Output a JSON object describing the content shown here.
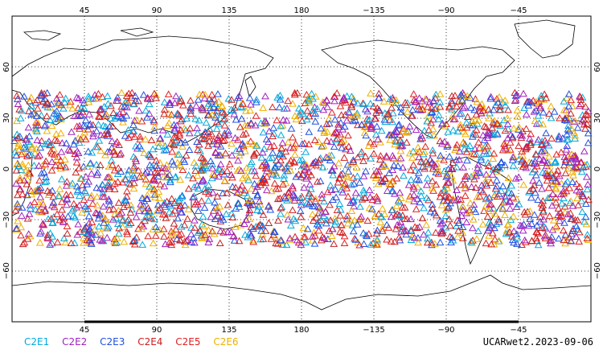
{
  "chart_data": {
    "type": "scatter",
    "title": "",
    "xlabel": "",
    "ylabel": "",
    "projection": "equirectangular, centered at 180",
    "lon_ticks": [
      "45",
      "90",
      "135",
      "180",
      "−135",
      "−90",
      "−45"
    ],
    "lat_ticks_left": [
      "60",
      "30",
      "0",
      "−30",
      "−60"
    ],
    "lat_ticks_right": [
      "60",
      "30",
      "0",
      "−30",
      "−60"
    ],
    "grid": "dotted at 45° longitude / 30° latitude",
    "lat_range": [
      -90,
      90
    ],
    "marker": "open triangle",
    "observation_latitude_band": [
      -45,
      45
    ],
    "series": [
      {
        "name": "C2E1",
        "color": "#00aadd"
      },
      {
        "name": "C2E2",
        "color": "#a020c0"
      },
      {
        "name": "C2E3",
        "color": "#2050e0"
      },
      {
        "name": "C2E4",
        "color": "#cc2020"
      },
      {
        "name": "C2E5",
        "color": "#e02020"
      },
      {
        "name": "C2E6",
        "color": "#f0b000"
      }
    ]
  },
  "caption": "UCARwet2.2023-09-06"
}
